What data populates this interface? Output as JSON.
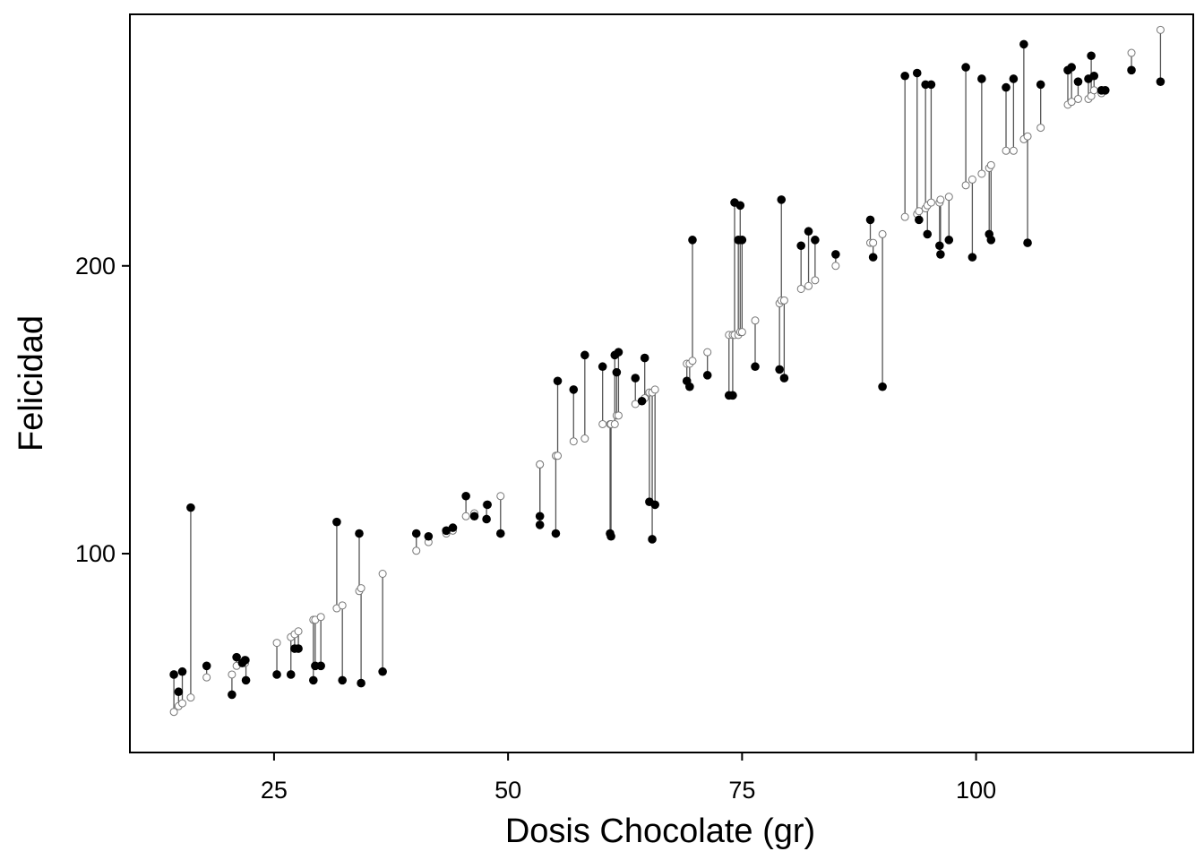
{
  "chart_data": {
    "type": "scatter",
    "title": "",
    "xlabel": "Dosis Chocolate (gr)",
    "ylabel": "Felicidad",
    "xlim": [
      9.6,
      123.2
    ],
    "ylim": [
      30.9,
      287.4
    ],
    "xticks": [
      25,
      50,
      75,
      100
    ],
    "yticks": [
      100,
      200
    ],
    "grid": false,
    "legend": "none",
    "colors": {
      "observed": "#000000",
      "fitted": "#777777",
      "residual_line": "#555555"
    },
    "series": [
      {
        "role": "observed (filled points)",
        "x": [
          14.3,
          14.8,
          15.2,
          16.1,
          17.8,
          20.5,
          21.0,
          21.6,
          21.9,
          22.0,
          25.3,
          26.8,
          27.2,
          27.6,
          29.2,
          29.4,
          30.0,
          31.7,
          32.3,
          34.1,
          34.3,
          36.6,
          40.2,
          41.5,
          43.4,
          44.1,
          45.5,
          46.4,
          47.7,
          47.8,
          49.2,
          53.4,
          53.4,
          55.1,
          55.3,
          57.0,
          58.2,
          60.1,
          60.9,
          61.0,
          61.4,
          61.6,
          61.8,
          63.6,
          64.3,
          64.6,
          65.1,
          65.4,
          65.7,
          69.1,
          69.4,
          69.7,
          71.3,
          73.6,
          74.0,
          74.2,
          74.6,
          74.8,
          75.0,
          76.4,
          79.0,
          79.2,
          79.5,
          81.3,
          82.1,
          82.8,
          85.0,
          88.7,
          89.0,
          90.0,
          92.4,
          93.7,
          93.9,
          94.6,
          94.8,
          95.2,
          96.1,
          96.2,
          97.1,
          98.9,
          99.6,
          100.6,
          101.4,
          101.6,
          103.2,
          104.0,
          105.1,
          105.5,
          106.9,
          109.8,
          110.2,
          110.9,
          112.0,
          112.3,
          112.6,
          113.4,
          113.8,
          116.6,
          119.7
        ],
        "y": [
          58,
          52,
          59,
          116,
          61,
          51,
          64,
          62,
          63,
          56,
          58,
          58,
          67,
          67,
          56,
          61,
          61,
          111,
          56,
          107,
          55,
          59,
          107,
          106,
          108,
          109,
          120,
          113,
          112,
          117,
          107,
          113,
          110,
          107,
          160,
          157,
          169,
          165,
          107,
          106,
          169,
          163,
          170,
          161,
          153,
          168,
          118,
          105,
          117,
          160,
          158,
          209,
          162,
          155,
          155,
          222,
          209,
          221,
          209,
          165,
          164,
          223,
          161,
          207,
          212,
          209,
          204,
          216,
          203,
          158,
          266,
          267,
          216,
          263,
          211,
          263,
          207,
          204,
          209,
          269,
          203,
          265,
          211,
          209,
          262,
          265,
          277,
          208,
          263,
          268,
          269,
          264,
          265,
          273,
          266,
          261,
          261,
          268,
          264
        ]
      },
      {
        "role": "predicted (open circles)",
        "x": [
          14.3,
          14.8,
          15.2,
          16.1,
          17.8,
          20.5,
          21.0,
          21.6,
          21.9,
          22.0,
          25.3,
          26.8,
          27.2,
          27.6,
          29.2,
          29.4,
          30.0,
          31.7,
          32.3,
          34.1,
          34.3,
          36.6,
          40.2,
          41.5,
          43.4,
          44.1,
          45.5,
          46.4,
          47.7,
          47.8,
          49.2,
          53.4,
          53.4,
          55.1,
          55.3,
          57.0,
          58.2,
          60.1,
          60.9,
          61.0,
          61.4,
          61.6,
          61.8,
          63.6,
          64.3,
          64.6,
          65.1,
          65.4,
          65.7,
          69.1,
          69.4,
          69.7,
          71.3,
          73.6,
          74.0,
          74.2,
          74.6,
          74.8,
          75.0,
          76.4,
          79.0,
          79.2,
          79.5,
          81.3,
          82.1,
          82.8,
          85.0,
          88.7,
          89.0,
          90.0,
          92.4,
          93.7,
          93.9,
          94.6,
          94.8,
          95.2,
          96.1,
          96.2,
          97.1,
          98.9,
          99.6,
          100.6,
          101.4,
          101.6,
          103.2,
          104.0,
          105.1,
          105.5,
          106.9,
          109.8,
          110.2,
          110.9,
          112.0,
          112.3,
          112.6,
          113.4,
          113.8,
          116.6,
          119.7
        ],
        "y": [
          45,
          47,
          48,
          50,
          57,
          58,
          61,
          62,
          62,
          63,
          69,
          71,
          72,
          73,
          77,
          77,
          78,
          81,
          82,
          87,
          88,
          93,
          101,
          104,
          107,
          108,
          113,
          114,
          117,
          117,
          120,
          131,
          131,
          134,
          134,
          139,
          140,
          145,
          145,
          145,
          145,
          148,
          148,
          152,
          153,
          154,
          156,
          156,
          157,
          166,
          166,
          167,
          170,
          176,
          176,
          176,
          176,
          177,
          177,
          181,
          187,
          188,
          188,
          192,
          193,
          195,
          200,
          208,
          208,
          211,
          217,
          218,
          219,
          220,
          221,
          222,
          222,
          223,
          224,
          228,
          230,
          232,
          234,
          235,
          240,
          240,
          244,
          245,
          248,
          256,
          257,
          258,
          258,
          259,
          261,
          260,
          261,
          274,
          282
        ]
      }
    ]
  }
}
